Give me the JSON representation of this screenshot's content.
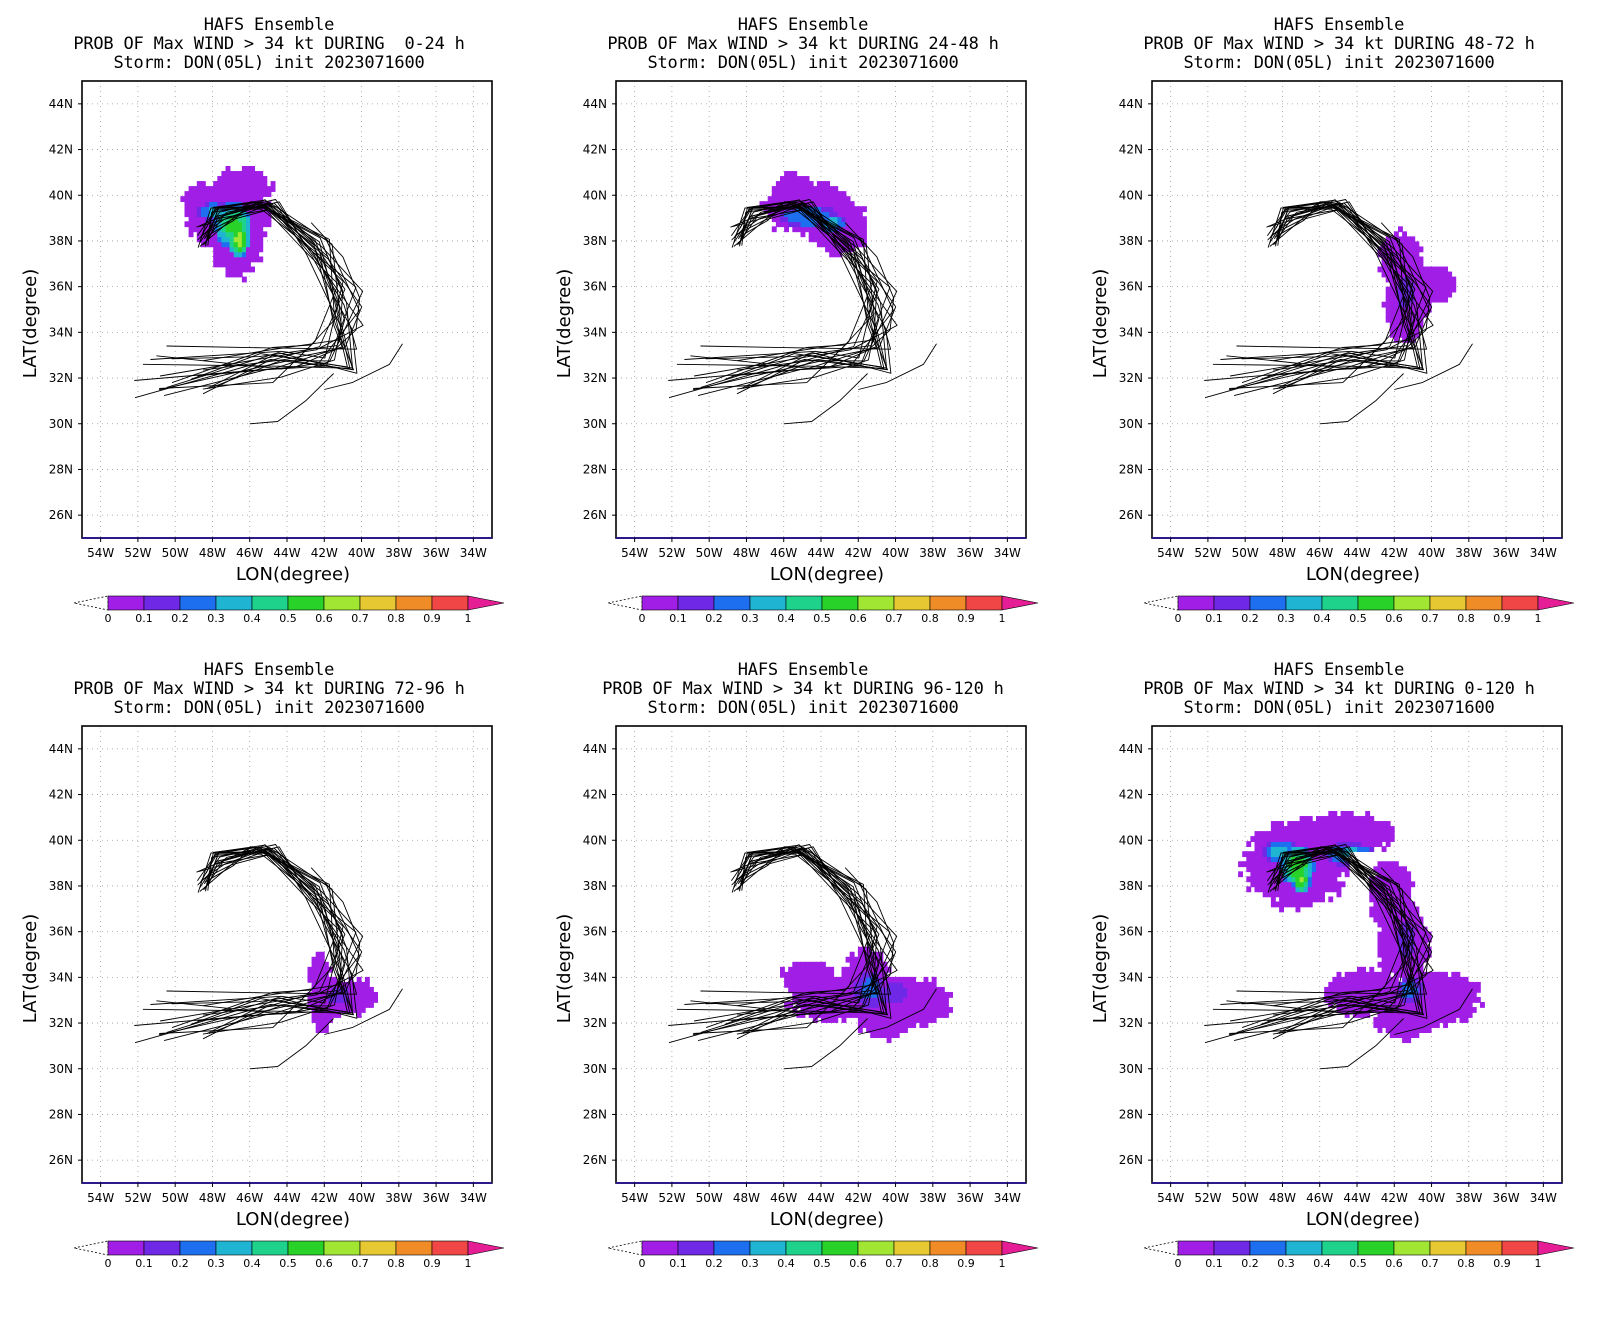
{
  "figure": {
    "model_label": "HAFS Ensemble",
    "storm_line": "Storm: DON(05L) init 2023071600",
    "axis": {
      "xlabel": "LON(degree)",
      "ylabel": "LAT(degree)",
      "lon_ticks": [
        "54W",
        "52W",
        "50W",
        "48W",
        "46W",
        "44W",
        "42W",
        "40W",
        "38W",
        "36W",
        "34W"
      ],
      "lat_ticks": [
        "44N",
        "42N",
        "40N",
        "38N",
        "36N",
        "34N",
        "32N",
        "30N",
        "28N",
        "26N"
      ]
    },
    "colorbar": {
      "tick_labels": [
        "0",
        "0.1",
        "0.2",
        "0.3",
        "0.4",
        "0.5",
        "0.6",
        "0.7",
        "0.8",
        "0.9",
        "1"
      ],
      "colors": [
        "#a01ee6",
        "#6e28e6",
        "#1e6ef0",
        "#1eb4d2",
        "#1ed28c",
        "#28d228",
        "#a0e632",
        "#e6c832",
        "#f08c28",
        "#f04646",
        "#e61e96"
      ]
    }
  },
  "chart_data": [
    {
      "type": "heatmap",
      "title": "PROB OF Max WIND > 34 kt DURING  0-24 h",
      "period": "0-24 h",
      "xlim": [
        -55,
        -33
      ],
      "ylim": [
        25,
        45
      ],
      "peak_prob": 0.6,
      "prob_center": [
        -46.8,
        38.8
      ]
    },
    {
      "type": "heatmap",
      "title": "PROB OF Max WIND > 34 kt DURING 24-48 h",
      "period": "24-48 h",
      "xlim": [
        -55,
        -33
      ],
      "ylim": [
        25,
        45
      ],
      "peak_prob": 0.3,
      "prob_center": [
        -44.5,
        39.2
      ]
    },
    {
      "type": "heatmap",
      "title": "PROB OF Max WIND > 34 kt DURING 48-72 h",
      "period": "48-72 h",
      "xlim": [
        -55,
        -33
      ],
      "ylim": [
        25,
        45
      ],
      "peak_prob": 0.2,
      "prob_center": [
        -41.8,
        36.0
      ]
    },
    {
      "type": "heatmap",
      "title": "PROB OF Max WIND > 34 kt DURING 72-96 h",
      "period": "72-96 h",
      "xlim": [
        -55,
        -33
      ],
      "ylim": [
        25,
        45
      ],
      "peak_prob": 0.2,
      "prob_center": [
        -41.5,
        33.2
      ]
    },
    {
      "type": "heatmap",
      "title": "PROB OF Max WIND > 34 kt DURING 96-120 h",
      "period": "96-120 h",
      "xlim": [
        -55,
        -33
      ],
      "ylim": [
        25,
        45
      ],
      "peak_prob": 0.2,
      "prob_center": [
        -41.5,
        33.5
      ]
    },
    {
      "type": "heatmap",
      "title": "PROB OF Max WIND > 34 kt DURING 0-120 h",
      "period": "0-120 h",
      "xlim": [
        -55,
        -33
      ],
      "ylim": [
        25,
        45
      ],
      "peak_prob": 0.6,
      "prob_center": [
        -44.0,
        36.5
      ]
    }
  ]
}
